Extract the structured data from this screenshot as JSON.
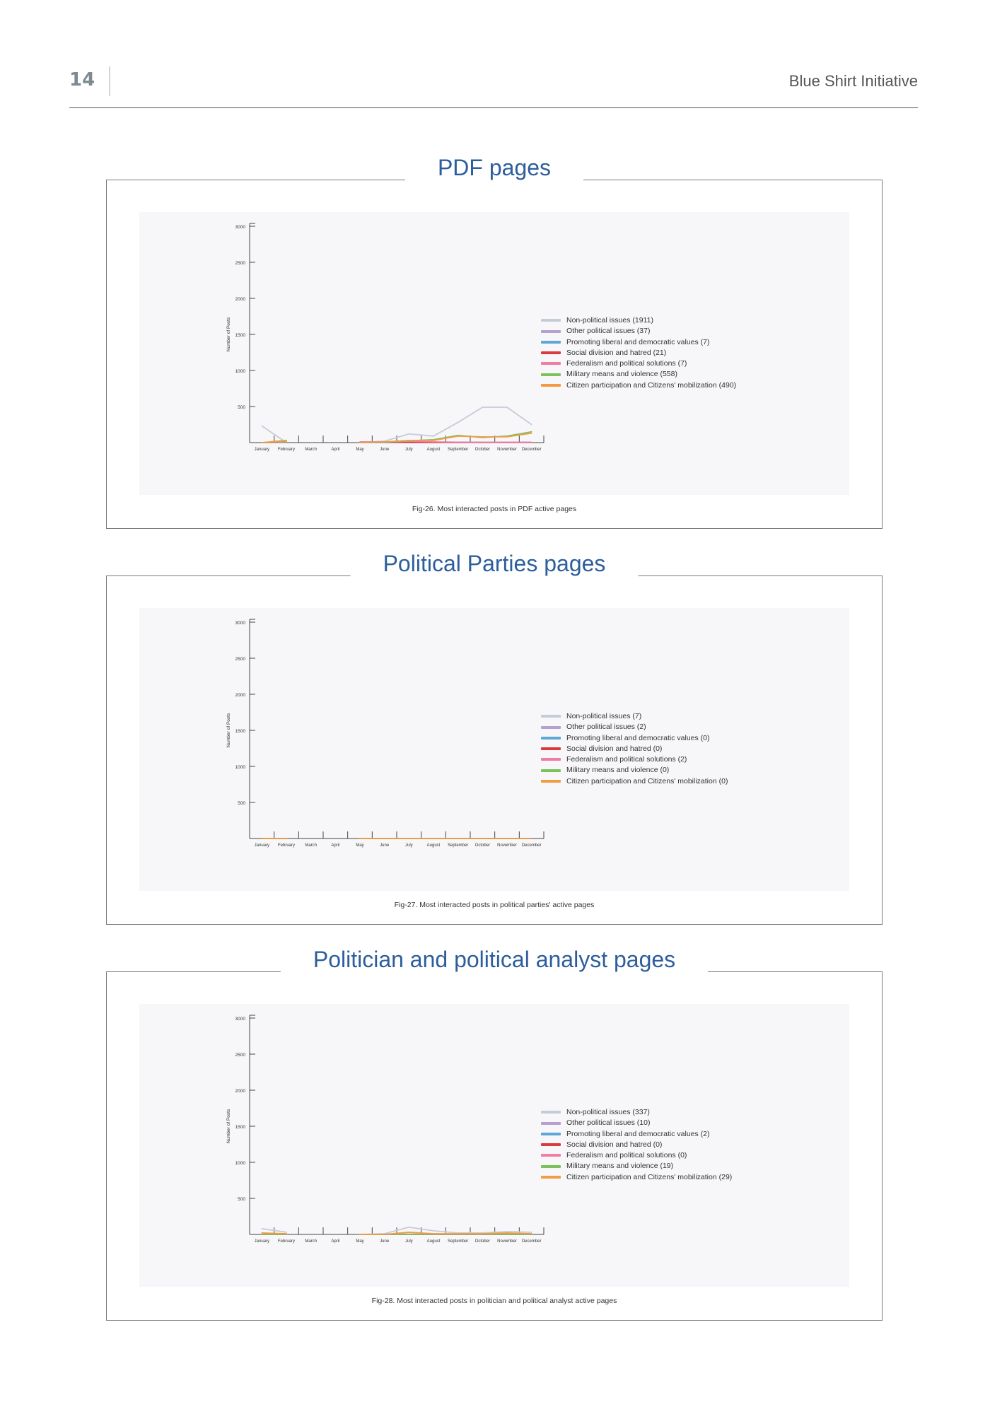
{
  "header": {
    "page_number": "14",
    "doc_title": "Blue Shirt Initiative"
  },
  "colors": {
    "title_blue": "#2d5e9c",
    "series": [
      "#c5ccd9",
      "#b5a0cf",
      "#5ea7d6",
      "#d83a42",
      "#ee7ea3",
      "#7cc25a",
      "#f39a44"
    ]
  },
  "sections": [
    {
      "title": "PDF pages",
      "caption": "Fig-26. Most interacted posts in PDF active pages",
      "legend": [
        "Non-political issues (1911)",
        "Other political issues (37)",
        "Promoting liberal and democratic values (7)",
        "Social division and hatred (21)",
        "Federalism and political solutions (7)",
        "Military means and violence (558)",
        "Citizen participation and Citizens' mobilization (490)"
      ]
    },
    {
      "title": "Political Parties pages",
      "caption": "Fig-27. Most interacted posts in political parties' active pages",
      "legend": [
        "Non-political issues (7)",
        "Other political issues (2)",
        "Promoting liberal and democratic values (0)",
        "Social division and hatred (0)",
        "Federalism and political solutions (2)",
        "Military means and violence (0)",
        "Citizen participation and Citizens' mobilization (0)"
      ]
    },
    {
      "title": "Politician and political analyst pages",
      "caption": "Fig-28. Most interacted posts in politician and political analyst active pages",
      "legend": [
        "Non-political issues (337)",
        "Other political issues (10)",
        "Promoting liberal and democratic values (2)",
        "Social division and hatred (0)",
        "Federalism and political solutions (0)",
        "Military means and violence (19)",
        "Citizen participation and Citizens' mobilization (29)"
      ]
    }
  ],
  "chart_data": [
    {
      "type": "line",
      "title": "PDF pages",
      "ylabel": "Number of Posts",
      "xlabel": "",
      "ylim": [
        0,
        3000
      ],
      "yticks": [
        "500",
        "1000",
        "1500",
        "2000",
        "2500",
        "3000"
      ],
      "categories": [
        "January",
        "February",
        "March",
        "April",
        "May",
        "June",
        "July",
        "August",
        "September",
        "October",
        "November",
        "December"
      ],
      "series": [
        {
          "name": "Non-political issues (1911)",
          "values": [
            230,
            0,
            null,
            null,
            0,
            20,
            120,
            90,
            280,
            490,
            490,
            250
          ]
        },
        {
          "name": "Other political issues (37)",
          "values": [
            0,
            5,
            null,
            null,
            0,
            5,
            10,
            5,
            5,
            3,
            3,
            5
          ]
        },
        {
          "name": "Promoting liberal and democratic values (7)",
          "values": [
            0,
            0,
            null,
            null,
            0,
            0,
            2,
            1,
            1,
            1,
            1,
            1
          ]
        },
        {
          "name": "Social division and hatred (21)",
          "values": [
            0,
            5,
            null,
            null,
            5,
            5,
            3,
            2,
            2,
            2,
            2,
            2
          ]
        },
        {
          "name": "Federalism and political solutions (7)",
          "values": [
            0,
            2,
            null,
            null,
            10,
            10,
            20,
            10,
            5,
            3,
            2,
            2
          ]
        },
        {
          "name": "Military means and violence (558)",
          "values": [
            0,
            15,
            null,
            null,
            0,
            5,
            25,
            40,
            100,
            70,
            90,
            150
          ]
        },
        {
          "name": "Citizen participation and Citizens' mobilization (490)",
          "values": [
            0,
            30,
            null,
            null,
            0,
            10,
            30,
            30,
            90,
            80,
            80,
            130
          ]
        }
      ]
    },
    {
      "type": "line",
      "title": "Political Parties pages",
      "ylabel": "Number of Posts",
      "xlabel": "",
      "ylim": [
        0,
        3000
      ],
      "yticks": [
        "500",
        "1000",
        "1500",
        "2000",
        "2500",
        "3000"
      ],
      "categories": [
        "January",
        "February",
        "March",
        "April",
        "May",
        "June",
        "July",
        "August",
        "September",
        "October",
        "November",
        "December"
      ],
      "series": [
        {
          "name": "Non-political issues (7)",
          "values": [
            0,
            1,
            null,
            null,
            1,
            1,
            1,
            1,
            1,
            1,
            1,
            0
          ]
        },
        {
          "name": "Other political issues (2)",
          "values": [
            0,
            0,
            null,
            null,
            0,
            1,
            0,
            0,
            0,
            1,
            0,
            0
          ]
        },
        {
          "name": "Promoting liberal and democratic values (0)",
          "values": [
            0,
            0,
            null,
            null,
            0,
            0,
            0,
            0,
            0,
            0,
            0,
            0
          ]
        },
        {
          "name": "Social division and hatred (0)",
          "values": [
            0,
            0,
            null,
            null,
            0,
            0,
            0,
            0,
            0,
            0,
            0,
            0
          ]
        },
        {
          "name": "Federalism and political solutions (2)",
          "values": [
            0,
            0,
            null,
            null,
            1,
            0,
            0,
            1,
            0,
            0,
            0,
            0
          ]
        },
        {
          "name": "Military means and violence (0)",
          "values": [
            0,
            0,
            null,
            null,
            0,
            0,
            0,
            0,
            0,
            0,
            0,
            0
          ]
        },
        {
          "name": "Citizen participation and Citizens' mobilization (0)",
          "values": [
            0,
            0,
            null,
            null,
            0,
            0,
            0,
            0,
            0,
            0,
            0,
            0
          ]
        }
      ]
    },
    {
      "type": "line",
      "title": "Politician and political analyst pages",
      "ylabel": "Number of Posts",
      "xlabel": "",
      "ylim": [
        0,
        3000
      ],
      "yticks": [
        "500",
        "1000",
        "1500",
        "2000",
        "2500",
        "3000"
      ],
      "categories": [
        "January",
        "February",
        "March",
        "April",
        "May",
        "June",
        "July",
        "August",
        "September",
        "October",
        "November",
        "December"
      ],
      "series": [
        {
          "name": "Non-political issues (337)",
          "values": [
            80,
            30,
            null,
            null,
            0,
            10,
            100,
            50,
            20,
            20,
            40,
            30
          ]
        },
        {
          "name": "Other political issues (10)",
          "values": [
            0,
            2,
            null,
            null,
            0,
            2,
            2,
            2,
            2,
            2,
            2,
            2
          ]
        },
        {
          "name": "Promoting liberal and democratic values (2)",
          "values": [
            0,
            0,
            null,
            null,
            0,
            0,
            1,
            0,
            0,
            0,
            1,
            0
          ]
        },
        {
          "name": "Social division and hatred (0)",
          "values": [
            0,
            0,
            null,
            null,
            0,
            0,
            0,
            0,
            0,
            0,
            0,
            0
          ]
        },
        {
          "name": "Federalism and political solutions (0)",
          "values": [
            0,
            0,
            null,
            null,
            0,
            0,
            0,
            0,
            0,
            0,
            0,
            0
          ]
        },
        {
          "name": "Military means and violence (19)",
          "values": [
            0,
            2,
            null,
            null,
            0,
            2,
            3,
            3,
            3,
            3,
            2,
            1
          ]
        },
        {
          "name": "Citizen participation and Citizens' mobilization (29)",
          "values": [
            20,
            10,
            null,
            null,
            0,
            0,
            30,
            10,
            10,
            10,
            20,
            10
          ]
        }
      ]
    }
  ]
}
